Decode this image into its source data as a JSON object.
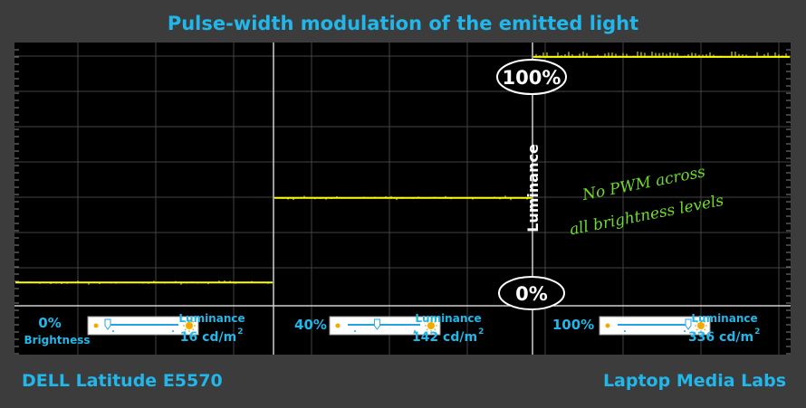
{
  "title": "Pulse-width modulation of the emitted light",
  "device": "DELL Latitude E5570",
  "brand": "Laptop Media Labs",
  "axis_label": "Luminance",
  "max_label": "100%",
  "min_label": "0%",
  "annotation": [
    "No PWM across",
    "all brightness levels"
  ],
  "colors": {
    "background": "#3c3c3c",
    "plot": "#000000",
    "grid": "#444444",
    "signal": "#ffff00",
    "accent": "#22b7ea",
    "note": "#6fdc2c"
  },
  "panels": [
    {
      "brightness": "0%",
      "brightness_label": "Brightness",
      "lum_label": "Luminance",
      "lum_value": "16 cd/m",
      "sup": "2"
    },
    {
      "brightness": "40%",
      "brightness_label": "",
      "lum_label": "Luminance",
      "lum_value": "142 cd/m",
      "sup": "2"
    },
    {
      "brightness": "100%",
      "brightness_label": "",
      "lum_label": "Luminance",
      "lum_value": "336 cd/m",
      "sup": "2"
    }
  ],
  "chart_data": {
    "type": "line",
    "ylabel": "Luminance",
    "ylim": [
      0,
      100
    ],
    "grid": true,
    "series": [
      {
        "values": [
          4.3,
          4.3
        ]
      },
      {
        "values": [
          38.7,
          38.7
        ]
      },
      {
        "values": [
          96.0,
          96.0
        ]
      }
    ],
    "brightness_settings": [
      0,
      40,
      100
    ],
    "luminance_cd_m2": [
      16,
      142,
      336
    ]
  }
}
